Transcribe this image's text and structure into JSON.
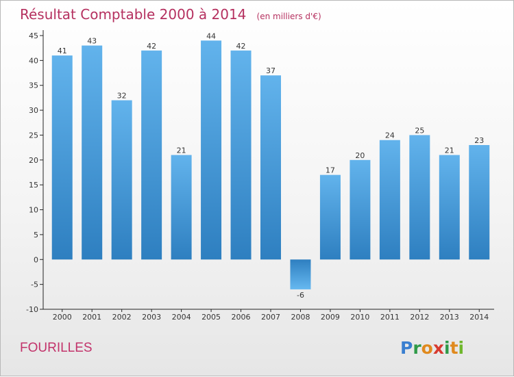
{
  "chart_data": {
    "type": "bar",
    "title": "Résultat Comptable 2000 à 2014",
    "subtitle": "(en milliers d'€)",
    "categories": [
      "2000",
      "2001",
      "2002",
      "2003",
      "2004",
      "2005",
      "2006",
      "2007",
      "2008",
      "2009",
      "2010",
      "2011",
      "2012",
      "2013",
      "2014"
    ],
    "values": [
      41,
      43,
      32,
      42,
      21,
      44,
      42,
      37,
      -6,
      17,
      20,
      24,
      25,
      21,
      23
    ],
    "value_labels": [
      "41",
      "43",
      "32",
      "42",
      "21",
      "44",
      "42",
      "37",
      "-6",
      "17",
      "20",
      "24",
      "25",
      "21",
      "23"
    ],
    "y_ticks": [
      -10,
      -5,
      0,
      5,
      10,
      15,
      20,
      25,
      30,
      35,
      40,
      45
    ],
    "y_tick_labels": [
      "-10",
      "-5",
      "0",
      "5",
      "10",
      "15",
      "20",
      "25",
      "30",
      "35",
      "40",
      "45"
    ],
    "ylim": [
      -10,
      45
    ],
    "xlabel": "",
    "ylabel": "",
    "grid": false,
    "bar_color_top": "#62b3ec",
    "bar_color_bottom": "#2e7fc0",
    "negative_bar_color_top": "#2e7fc0",
    "negative_bar_color_bottom": "#66b8f0"
  },
  "footer": {
    "commune": "FOURILLES",
    "brand_letters": [
      "P",
      "r",
      "o",
      "x",
      "i",
      "t",
      "i"
    ],
    "brand_colors": [
      "#3a7fd0",
      "#2f9a48",
      "#e08a1e",
      "#d73a2f",
      "#2f9a48",
      "#e08a1e",
      "#6fb72c"
    ]
  }
}
